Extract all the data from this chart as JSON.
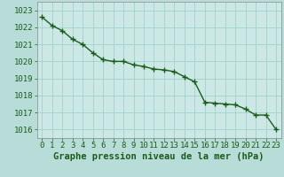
{
  "x": [
    0,
    1,
    2,
    3,
    4,
    5,
    6,
    7,
    8,
    9,
    10,
    11,
    12,
    13,
    14,
    15,
    16,
    17,
    18,
    19,
    20,
    21,
    22,
    23
  ],
  "y": [
    1022.6,
    1022.1,
    1021.8,
    1021.3,
    1021.0,
    1020.5,
    1020.1,
    1020.0,
    1020.0,
    1019.8,
    1019.7,
    1019.55,
    1019.5,
    1019.4,
    1019.1,
    1018.8,
    1017.6,
    1017.55,
    1017.5,
    1017.45,
    1017.2,
    1016.85,
    1016.85,
    1016.0
  ],
  "line_color": "#1a5c1a",
  "marker": "+",
  "marker_size": 4,
  "bg_color": "#b8ddd8",
  "plot_bg_color": "#cce8e4",
  "grid_color": "#99cccc",
  "ylim": [
    1015.5,
    1023.5
  ],
  "yticks": [
    1016,
    1017,
    1018,
    1019,
    1020,
    1021,
    1022,
    1023
  ],
  "xlim": [
    -0.5,
    23.5
  ],
  "xticks": [
    0,
    1,
    2,
    3,
    4,
    5,
    6,
    7,
    8,
    9,
    10,
    11,
    12,
    13,
    14,
    15,
    16,
    17,
    18,
    19,
    20,
    21,
    22,
    23
  ],
  "xlabel": "Graphe pression niveau de la mer (hPa)",
  "xlabel_fontsize": 7.5,
  "tick_fontsize": 6.5,
  "title_color": "#1a5c1a",
  "axis_color": "#888888",
  "line_width": 1.0,
  "marker_edge_width": 1.0
}
